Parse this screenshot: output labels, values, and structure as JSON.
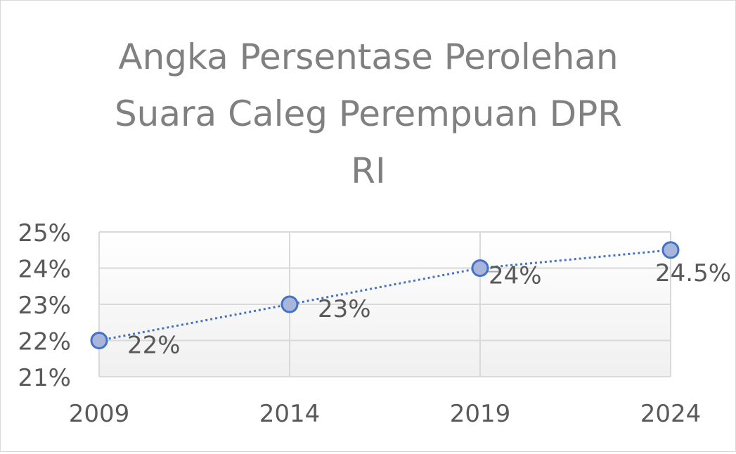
{
  "chart_data": {
    "type": "line",
    "title_lines": [
      "Angka Persentase Perolehan",
      "Suara Caleg Perempuan DPR",
      "RI"
    ],
    "categories": [
      "2009",
      "2014",
      "2019",
      "2024"
    ],
    "values": [
      22,
      23,
      24,
      24.5
    ],
    "data_labels": [
      "22%",
      "23%",
      "24%",
      "24.5%"
    ],
    "y_ticks": [
      "21%",
      "22%",
      "23%",
      "24%",
      "25%"
    ],
    "ylim": [
      21,
      25
    ],
    "grid": true,
    "legend": "none",
    "colors": {
      "line": "#4472c4",
      "marker_fill": "#a9b6dc",
      "grid": "#d9d9d9",
      "text": "#595959"
    }
  }
}
